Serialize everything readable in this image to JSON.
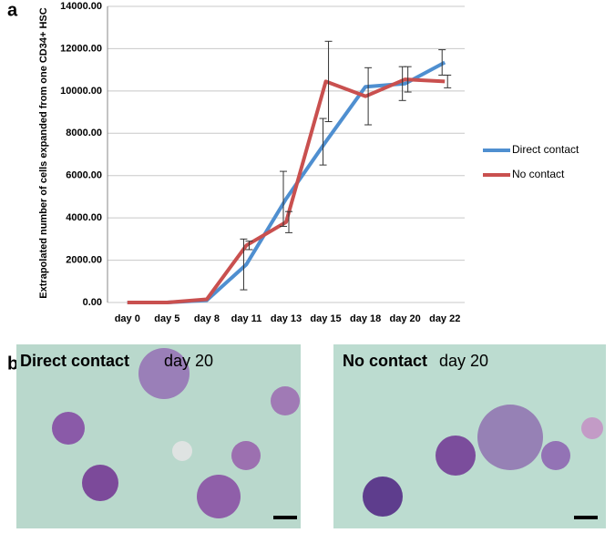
{
  "chart_data": {
    "type": "line",
    "panel_label": "a",
    "y_label": "Extrapolated number of cells expanded from one CD34+ HSC",
    "categories": [
      "day 0",
      "day 5",
      "day 8",
      "day 11",
      "day 13",
      "day 15",
      "day 18",
      "day 20",
      "day 22"
    ],
    "series": [
      {
        "name": "Direct contact",
        "color": "#4f8fd0",
        "values": [
          0,
          0,
          100,
          1800,
          4900,
          7600,
          10200,
          10350,
          11350
        ],
        "errors": [
          null,
          null,
          null,
          1200,
          1300,
          1100,
          null,
          800,
          600
        ]
      },
      {
        "name": "No contact",
        "color": "#c9504f",
        "values": [
          0,
          0,
          150,
          2700,
          3800,
          10450,
          9750,
          10550,
          10450
        ],
        "errors": [
          null,
          null,
          null,
          200,
          500,
          1900,
          1350,
          600,
          300
        ]
      }
    ],
    "ylim": [
      0,
      14000
    ],
    "yticks": [
      {
        "value": 0,
        "label": "0.00"
      },
      {
        "value": 2000,
        "label": "2000.00"
      },
      {
        "value": 4000,
        "label": "4000.00"
      },
      {
        "value": 6000,
        "label": "6000.00"
      },
      {
        "value": 8000,
        "label": "8000.00"
      },
      {
        "value": 10000,
        "label": "10000.00"
      },
      {
        "value": 12000,
        "label": "12000.00"
      },
      {
        "value": 14000,
        "label": "14000.00"
      }
    ],
    "grid": true
  },
  "micrographs": {
    "panel_label": "b",
    "images": [
      {
        "title": "Direct contact",
        "time": "day 20"
      },
      {
        "title": "No contact",
        "time": "day 20"
      }
    ]
  }
}
